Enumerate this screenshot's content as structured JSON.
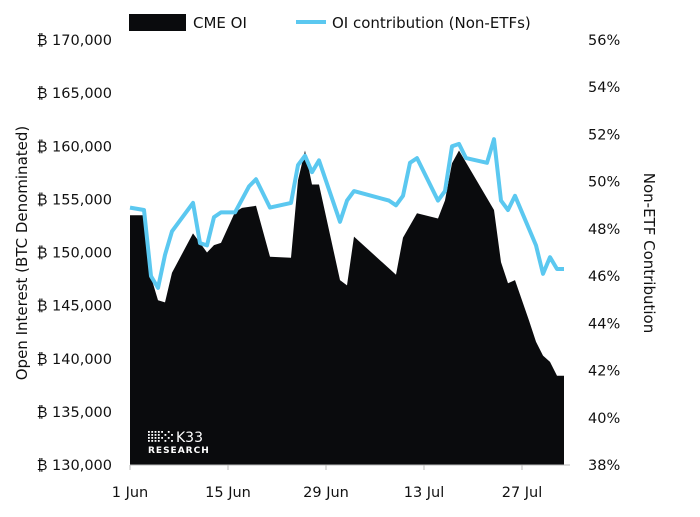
{
  "chart_data": {
    "type": "area+line",
    "legend": {
      "position": "top",
      "entries": [
        "CME OI",
        "OI contribution (Non-ETFs)"
      ]
    },
    "ylabel": "Open Interest (BTC Denominated)",
    "y2label": "Non-ETF Contribution",
    "ylim": [
      130000,
      170000
    ],
    "y2lim": [
      38,
      56
    ],
    "yticks": [
      "₿ 130,000",
      "₿ 135,000",
      "₿ 140,000",
      "₿ 145,000",
      "₿ 150,000",
      "₿ 155,000",
      "₿ 160,000",
      "₿ 165,000",
      "₿ 170,000"
    ],
    "y2ticks": [
      "38%",
      "40%",
      "42%",
      "44%",
      "46%",
      "48%",
      "50%",
      "52%",
      "54%",
      "56%"
    ],
    "xticks": [
      "1 Jun",
      "15 Jun",
      "29 Jun",
      "13 Jul",
      "27 Jul"
    ],
    "xlim": [
      "Jun 1",
      "Aug 2"
    ],
    "grid": false,
    "watermark": "K33 RESEARCH",
    "series": [
      {
        "name": "CME OI",
        "type": "area",
        "axis": "left",
        "color": "#0a0b0d",
        "points": [
          [
            "Jun 1",
            153500
          ],
          [
            "Jun 3",
            153500
          ],
          [
            "Jun 4",
            147700
          ],
          [
            "Jun 5",
            145500
          ],
          [
            "Jun 6",
            145300
          ],
          [
            "Jun 7",
            148100
          ],
          [
            "Jun 10",
            151800
          ],
          [
            "Jun 11",
            150900
          ],
          [
            "Jun 12",
            150000
          ],
          [
            "Jun 13",
            150700
          ],
          [
            "Jun 14",
            150900
          ],
          [
            "Jun 16",
            153800
          ],
          [
            "Jun 17",
            154200
          ],
          [
            "Jun 19",
            154400
          ],
          [
            "Jun 21",
            149600
          ],
          [
            "Jun 24",
            149500
          ],
          [
            "Jun 25",
            156800
          ],
          [
            "Jun 26",
            159600
          ],
          [
            "Jun 27",
            156400
          ],
          [
            "Jun 28",
            156400
          ],
          [
            "Jul 1",
            147400
          ],
          [
            "Jul 2",
            146900
          ],
          [
            "Jul 3",
            151500
          ],
          [
            "Jul 9",
            147900
          ],
          [
            "Jul 10",
            151400
          ],
          [
            "Jul 12",
            153700
          ],
          [
            "Jul 15",
            153200
          ],
          [
            "Jul 16",
            154900
          ],
          [
            "Jul 17",
            158400
          ],
          [
            "Jul 18",
            159600
          ],
          [
            "Jul 23",
            154000
          ],
          [
            "Jul 24",
            149100
          ],
          [
            "Jul 25",
            147100
          ],
          [
            "Jul 26",
            147400
          ],
          [
            "Jul 28",
            143600
          ],
          [
            "Jul 29",
            141600
          ],
          [
            "Jul 30",
            140300
          ],
          [
            "Jul 31",
            139700
          ],
          [
            "Aug 1",
            138400
          ],
          [
            "Aug 2",
            138400
          ]
        ]
      },
      {
        "name": "OI contribution (Non-ETFs)",
        "type": "line",
        "axis": "right",
        "color": "#5bc8f0",
        "points": [
          [
            "Jun 1",
            48.9
          ],
          [
            "Jun 3",
            48.8
          ],
          [
            "Jun 4",
            46.0
          ],
          [
            "Jun 5",
            45.5
          ],
          [
            "Jun 6",
            46.9
          ],
          [
            "Jun 7",
            47.9
          ],
          [
            "Jun 10",
            49.1
          ],
          [
            "Jun 11",
            47.4
          ],
          [
            "Jun 12",
            47.3
          ],
          [
            "Jun 13",
            48.5
          ],
          [
            "Jun 14",
            48.7
          ],
          [
            "Jun 16",
            48.7
          ],
          [
            "Jun 18",
            49.8
          ],
          [
            "Jun 19",
            50.1
          ],
          [
            "Jun 21",
            48.9
          ],
          [
            "Jun 24",
            49.1
          ],
          [
            "Jun 25",
            50.7
          ],
          [
            "Jun 26",
            51.1
          ],
          [
            "Jun 27",
            50.4
          ],
          [
            "Jun 28",
            50.9
          ],
          [
            "Jul 1",
            48.3
          ],
          [
            "Jul 2",
            49.2
          ],
          [
            "Jul 3",
            49.6
          ],
          [
            "Jul 8",
            49.2
          ],
          [
            "Jul 9",
            49.0
          ],
          [
            "Jul 10",
            49.4
          ],
          [
            "Jul 11",
            50.8
          ],
          [
            "Jul 12",
            51.0
          ],
          [
            "Jul 15",
            49.2
          ],
          [
            "Jul 16",
            49.6
          ],
          [
            "Jul 17",
            51.5
          ],
          [
            "Jul 18",
            51.6
          ],
          [
            "Jul 19",
            51.0
          ],
          [
            "Jul 22",
            50.8
          ],
          [
            "Jul 23",
            51.8
          ],
          [
            "Jul 24",
            49.2
          ],
          [
            "Jul 25",
            48.8
          ],
          [
            "Jul 26",
            49.4
          ],
          [
            "Jul 29",
            47.3
          ],
          [
            "Jul 30",
            46.1
          ],
          [
            "Jul 31",
            46.8
          ],
          [
            "Aug 1",
            46.3
          ],
          [
            "Aug 2",
            46.3
          ]
        ]
      }
    ]
  }
}
